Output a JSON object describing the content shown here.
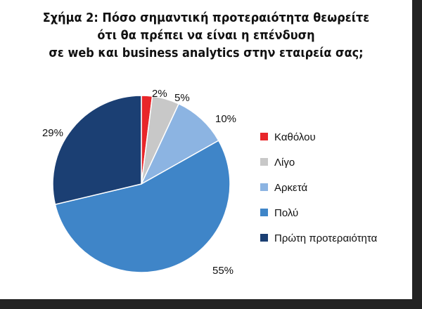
{
  "chart_data": {
    "type": "pie",
    "title_lines": [
      "Σχήμα 2: Πόσο σημαντική προτεραιότητα θεωρείτε",
      "ότι θα πρέπει να είναι η επένδυση",
      "σε web και business analytics στην εταιρεία σας;"
    ],
    "categories": [
      "Καθόλου",
      "Λίγο",
      "Αρκετά",
      "Πολύ",
      "Πρώτη προτεραιότητα"
    ],
    "values": [
      2,
      5,
      10,
      55,
      29
    ],
    "value_labels": [
      "2%",
      "5%",
      "10%",
      "55%",
      "29%"
    ],
    "colors": [
      "#e8262a",
      "#c8c8c8",
      "#8cb4e2",
      "#3f85c8",
      "#1b3f73"
    ],
    "legend": "right",
    "start_angle_deg": 0,
    "direction": "clockwise"
  }
}
